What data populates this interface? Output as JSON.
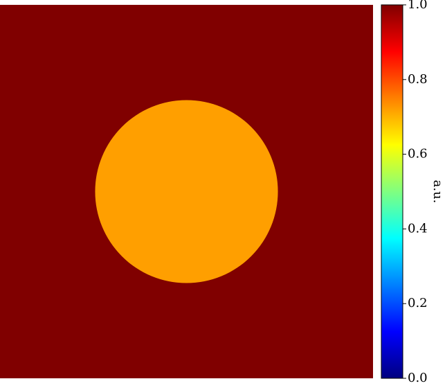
{
  "chart_data": {
    "type": "heatmap",
    "title": "",
    "xlabel": "",
    "ylabel": "",
    "field": {
      "background_value": 1.0,
      "disk_value": 0.7,
      "disk_center": [
        0.5,
        0.5
      ],
      "disk_radius": 0.245
    },
    "colorbar": {
      "label": "a.u.",
      "colormap": "jet",
      "vmin": 0.0,
      "vmax": 1.0,
      "ticks": [
        0.0,
        0.2,
        0.4,
        0.6,
        0.8,
        1.0
      ],
      "tick_labels": [
        "0.0",
        "0.2",
        "0.4",
        "0.6",
        "0.8",
        "1.0"
      ]
    }
  },
  "colors": {
    "background_fill": "#800000",
    "disk_fill": "#ff9f00",
    "axis_color": "#000000"
  }
}
